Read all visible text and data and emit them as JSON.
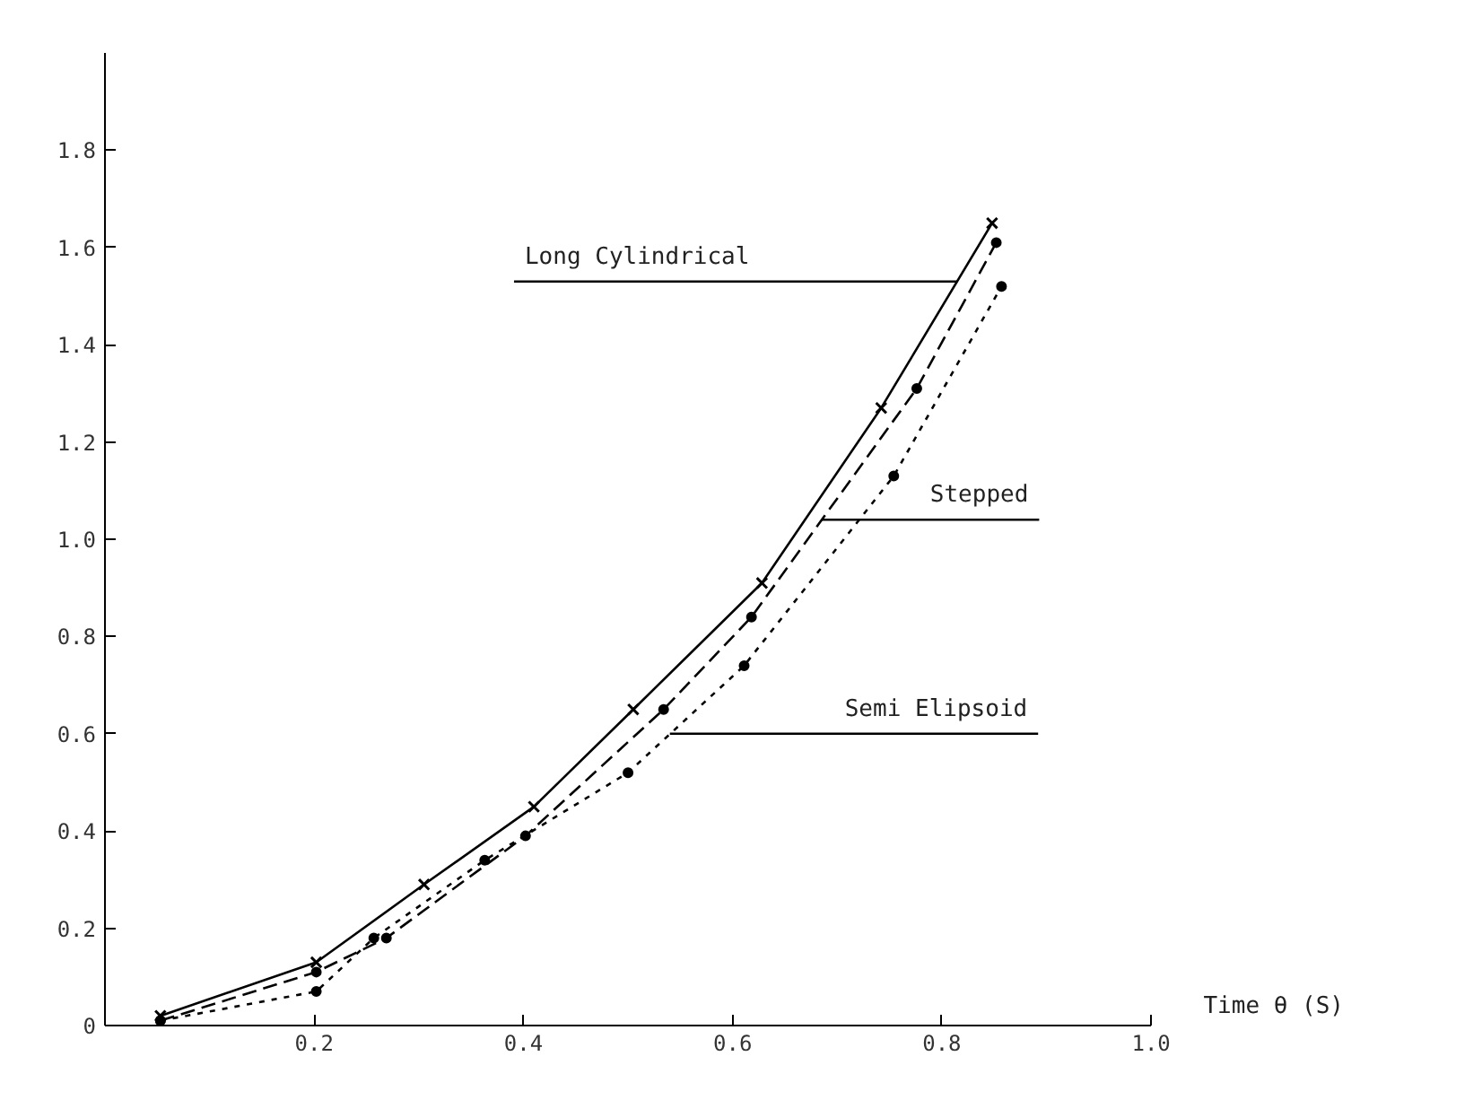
{
  "chart_data": {
    "type": "line",
    "xlabel": "Time θ (S)",
    "xlim": [
      0,
      1.0
    ],
    "xticks": [
      0.2,
      0.4,
      0.6,
      0.8,
      {
        "value": 1.0,
        "label": "1.0"
      }
    ],
    "ylim": [
      0,
      2.0
    ],
    "yticks": [
      0,
      0.2,
      0.4,
      0.6,
      0.8,
      {
        "value": 1.0,
        "label": "1.0"
      },
      1.2,
      1.4,
      1.6,
      1.8
    ],
    "grid": false,
    "series": [
      {
        "color": "#000000",
        "marker": "cross",
        "line_style": "solid",
        "x": [
          0.053,
          0.202,
          0.305,
          0.41,
          0.505,
          0.628,
          0.742,
          0.848
        ],
        "values": [
          0.02,
          0.13,
          0.29,
          0.45,
          0.65,
          0.91,
          1.27,
          1.65
        ]
      },
      {
        "color": "#000000",
        "marker": "circle",
        "line_style": "dashed",
        "x": [
          0.053,
          0.202,
          0.269,
          0.402,
          0.534,
          0.618,
          0.776,
          0.852
        ],
        "values": [
          0.01,
          0.11,
          0.18,
          0.39,
          0.65,
          0.84,
          1.31,
          1.61
        ]
      },
      {
        "color": "#000000",
        "marker": "circle",
        "line_style": "dotted",
        "x": [
          0.053,
          0.202,
          0.257,
          0.363,
          0.5,
          0.611,
          0.754,
          0.857
        ],
        "values": [
          0.01,
          0.07,
          0.18,
          0.34,
          0.52,
          0.74,
          1.13,
          1.52
        ]
      }
    ],
    "annotations": [
      {
        "text": "Long Cylindrical",
        "x": 0.815,
        "y": 1.53
      },
      {
        "text": "Stepped",
        "x": 0.685,
        "y": 1.04
      },
      {
        "text": "Semi Elipsoid",
        "x": 0.54,
        "y": 0.6
      }
    ]
  }
}
